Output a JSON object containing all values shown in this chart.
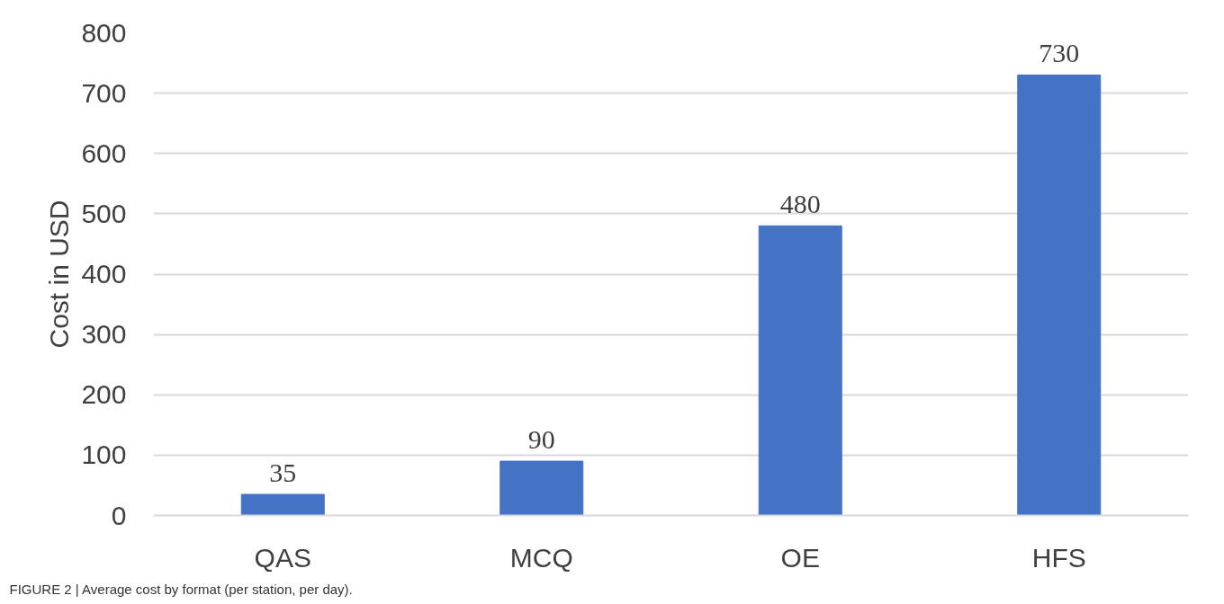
{
  "chart_data": {
    "type": "bar",
    "ylabel": "Cost in USD",
    "categories": [
      "QAS",
      "MCQ",
      "OE",
      "HFS"
    ],
    "values": [
      35,
      90,
      480,
      730
    ],
    "color": "#4472c4",
    "ylim": [
      0,
      800
    ],
    "yticks": [
      0,
      100,
      200,
      300,
      400,
      500,
      600,
      700,
      800
    ],
    "grid": "y",
    "data_labels": true,
    "annotations": [
      "FIGURE 2 | Average cost by format (per station, per day)."
    ]
  }
}
